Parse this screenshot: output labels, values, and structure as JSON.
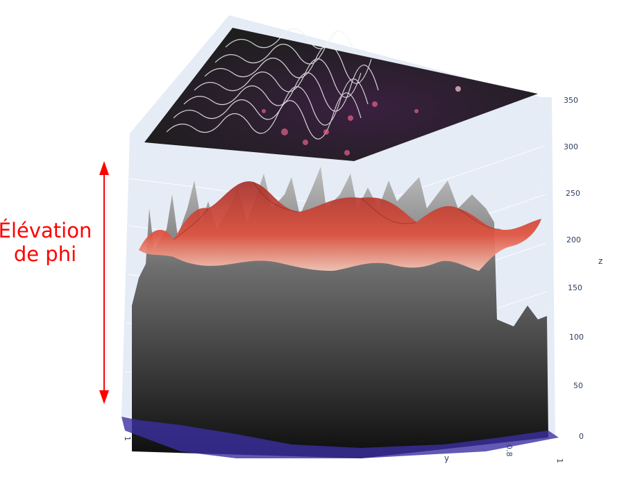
{
  "annotation": {
    "line1": "Élévation",
    "line2": "de phi",
    "color": "#ff0000"
  },
  "chart_data": {
    "type": "surface",
    "z_axis": {
      "title": "z",
      "range": [
        0,
        350
      ],
      "ticks": [
        "0",
        "50",
        "100",
        "150",
        "200",
        "250",
        "300",
        "350"
      ]
    },
    "y_axis": {
      "title": "y",
      "ticks": [
        "0.8",
        "1"
      ]
    },
    "x_axis": {
      "ticks": [
        "1"
      ]
    },
    "surfaces": [
      {
        "name": "",
        "colorscale": "greys",
        "description_z_range": [
          0,
          310
        ]
      },
      {
        "name": "",
        "colorscale": "reds",
        "description_z_range": [
          175,
          260
        ]
      }
    ],
    "projection": {
      "colorscale": "magma",
      "position": "top"
    },
    "colors": {
      "scene_bg": "#e5ecf6",
      "grid": "#ffffff",
      "axis_text": "#2a3f5f"
    }
  }
}
